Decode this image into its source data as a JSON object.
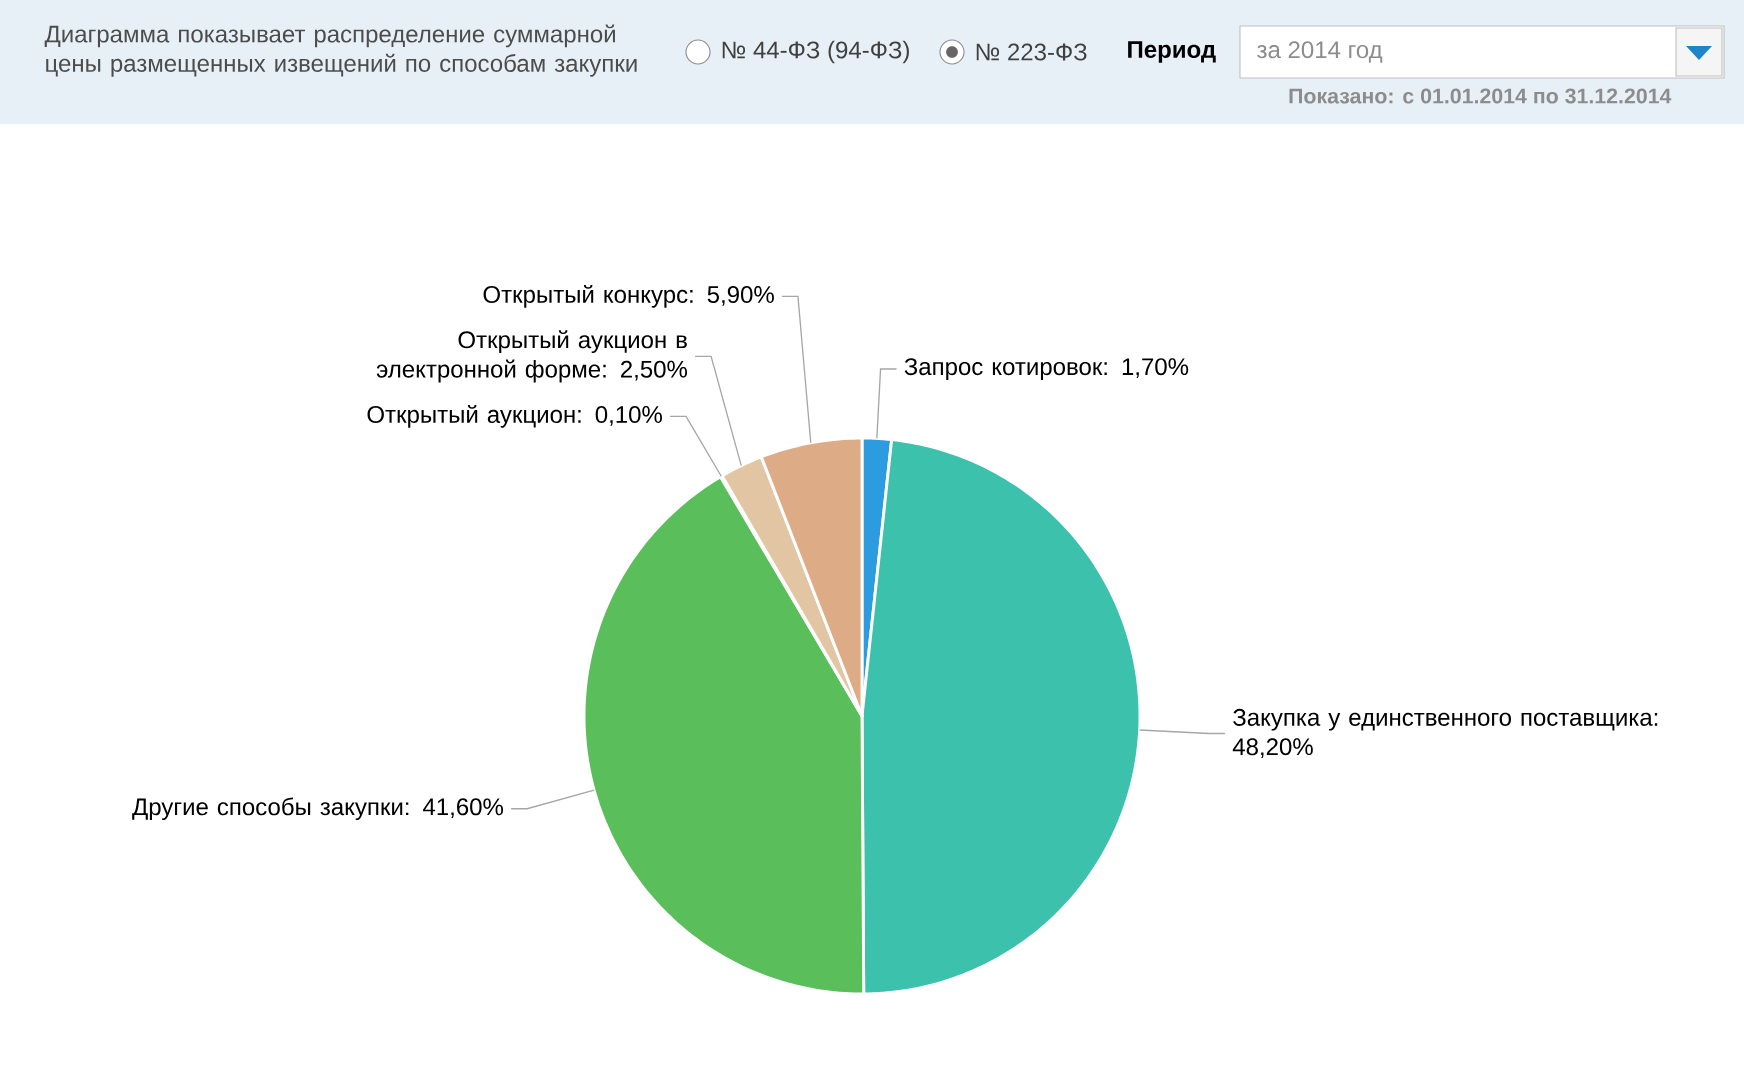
{
  "chart_data": {
    "type": "pie",
    "title": "Диаграмма показывает распределение суммарной цены размещенных извещений по способам закупки",
    "categories": [
      "Запрос котировок",
      "Закупка у единственного поставщика",
      "Другие способы закупки",
      "Открытый аукцион",
      "Открытый аукцион в электронной форме",
      "Открытый конкурс"
    ],
    "values": [
      1.7,
      48.2,
      41.6,
      0.1,
      2.5,
      5.9
    ],
    "value_labels": [
      ": 1,70%",
      ": 48,20%",
      ": 41,60%",
      ": 0,10%",
      ": 2,50%",
      ": 5,90%"
    ],
    "colors": [
      "#2d9be0",
      "#3cc1ad",
      "#5abf5b",
      "#bedd5e",
      "#e2c6a4",
      "#ddab86"
    ],
    "annotations": [
      "№ 44-ФЗ (94-ФЗ)",
      "№ 223-ФЗ",
      "Период",
      "за 2014 год",
      "Показано: с 01.01.2014 по 31.12.2014"
    ]
  }
}
